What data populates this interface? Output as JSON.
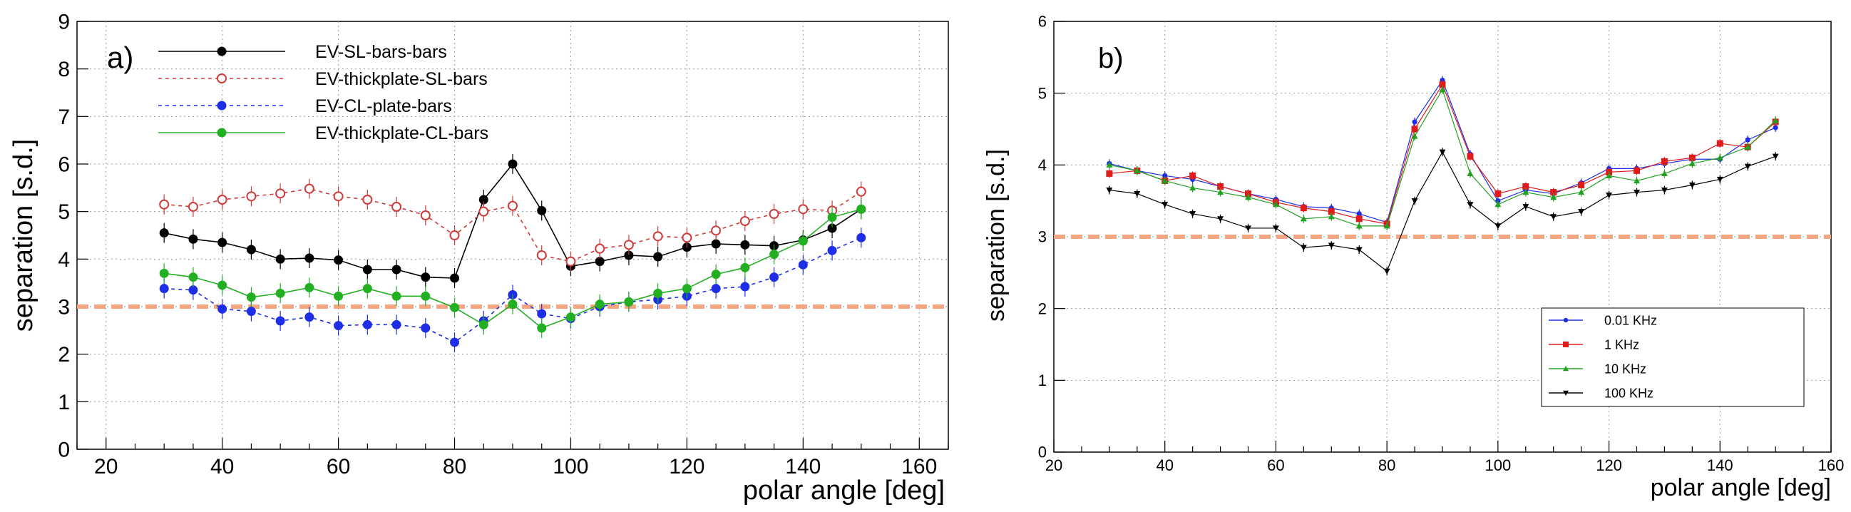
{
  "chart_data": [
    {
      "type": "line",
      "panel_label": "a)",
      "xlabel": "polar angle [deg]",
      "ylabel": "separation [s.d.]",
      "xlim": [
        15,
        165
      ],
      "ylim": [
        0,
        9
      ],
      "xticks": [
        20,
        40,
        60,
        80,
        100,
        120,
        140,
        160
      ],
      "yticks": [
        0,
        1,
        2,
        3,
        4,
        5,
        6,
        7,
        8,
        9
      ],
      "grid": true,
      "legend_position": "top-left",
      "threshold": {
        "y": 3,
        "color": "#f4a582"
      },
      "x": [
        30,
        35,
        40,
        45,
        50,
        55,
        60,
        65,
        70,
        75,
        80,
        85,
        90,
        95,
        100,
        105,
        110,
        115,
        120,
        125,
        130,
        135,
        140,
        145,
        150
      ],
      "series": [
        {
          "name": "EV-SL-bars-bars",
          "color": "#000000",
          "marker": "filled-circle",
          "dashed": false,
          "values": [
            4.55,
            4.42,
            4.35,
            4.2,
            4.0,
            4.02,
            3.98,
            3.78,
            3.78,
            3.62,
            3.6,
            5.25,
            6.0,
            5.02,
            3.85,
            3.95,
            4.08,
            4.05,
            4.25,
            4.32,
            4.3,
            4.28,
            4.4,
            4.65,
            5.05
          ]
        },
        {
          "name": "EV-thickplate-SL-bars",
          "color": "#d03a3a",
          "marker": "open-circle",
          "dashed": true,
          "values": [
            5.15,
            5.1,
            5.25,
            5.32,
            5.38,
            5.48,
            5.32,
            5.25,
            5.1,
            4.92,
            4.5,
            5.0,
            5.12,
            4.08,
            3.95,
            4.22,
            4.3,
            4.48,
            4.45,
            4.6,
            4.8,
            4.95,
            5.05,
            5.02,
            5.42
          ]
        },
        {
          "name": "EV-CL-plate-bars",
          "color": "#1e2ee6",
          "marker": "filled-circle",
          "dashed": true,
          "values": [
            3.38,
            3.35,
            2.95,
            2.9,
            2.7,
            2.78,
            2.6,
            2.62,
            2.62,
            2.55,
            2.25,
            2.7,
            3.25,
            2.85,
            2.75,
            3.0,
            3.1,
            3.15,
            3.22,
            3.38,
            3.42,
            3.62,
            3.88,
            4.18,
            4.45
          ]
        },
        {
          "name": "EV-thickplate-CL-bars",
          "color": "#22b022",
          "marker": "filled-circle",
          "dashed": false,
          "values": [
            3.7,
            3.62,
            3.45,
            3.2,
            3.28,
            3.4,
            3.22,
            3.38,
            3.22,
            3.22,
            2.98,
            2.62,
            3.05,
            2.55,
            2.78,
            3.05,
            3.1,
            3.28,
            3.38,
            3.68,
            3.82,
            4.1,
            4.38,
            4.88,
            5.05
          ]
        }
      ]
    },
    {
      "type": "line",
      "panel_label": "b)",
      "xlabel": "polar angle [deg]",
      "ylabel": "separation [s.d.]",
      "xlim": [
        20,
        160
      ],
      "ylim": [
        0,
        6
      ],
      "xticks": [
        20,
        40,
        60,
        80,
        100,
        120,
        140,
        160
      ],
      "yticks": [
        0,
        1,
        2,
        3,
        4,
        5,
        6
      ],
      "grid": true,
      "legend_position": "bottom-right",
      "threshold": {
        "y": 3,
        "color": "#f4a582"
      },
      "x": [
        30,
        35,
        40,
        45,
        50,
        55,
        60,
        65,
        70,
        75,
        80,
        85,
        90,
        95,
        100,
        105,
        110,
        115,
        120,
        125,
        130,
        135,
        140,
        145,
        150
      ],
      "series": [
        {
          "name": "0.01 KHz",
          "color": "#1e2ee6",
          "marker": "dot",
          "values": [
            4.02,
            3.92,
            3.85,
            3.8,
            3.7,
            3.6,
            3.52,
            3.42,
            3.4,
            3.32,
            3.2,
            4.6,
            5.18,
            4.15,
            3.5,
            3.65,
            3.6,
            3.75,
            3.95,
            3.95,
            4.02,
            4.08,
            4.08,
            4.35,
            4.52
          ]
        },
        {
          "name": "1 KHz",
          "color": "#e01b1b",
          "marker": "square",
          "values": [
            3.88,
            3.92,
            3.78,
            3.85,
            3.7,
            3.6,
            3.48,
            3.4,
            3.35,
            3.25,
            3.18,
            4.5,
            5.12,
            4.12,
            3.6,
            3.7,
            3.62,
            3.72,
            3.9,
            3.92,
            4.05,
            4.1,
            4.3,
            4.25,
            4.6
          ]
        },
        {
          "name": "10 KHz",
          "color": "#22a022",
          "marker": "triangle-up",
          "values": [
            4.0,
            3.92,
            3.78,
            3.68,
            3.62,
            3.55,
            3.45,
            3.25,
            3.28,
            3.15,
            3.15,
            4.4,
            5.05,
            3.88,
            3.45,
            3.62,
            3.55,
            3.62,
            3.85,
            3.78,
            3.88,
            4.02,
            4.1,
            4.25,
            4.62
          ]
        },
        {
          "name": "100 KHz",
          "color": "#000000",
          "marker": "triangle-down",
          "values": [
            3.65,
            3.6,
            3.45,
            3.32,
            3.25,
            3.12,
            3.12,
            2.85,
            2.88,
            2.82,
            2.52,
            3.5,
            4.18,
            3.45,
            3.15,
            3.42,
            3.28,
            3.35,
            3.58,
            3.62,
            3.65,
            3.72,
            3.8,
            3.98,
            4.12
          ]
        }
      ]
    }
  ]
}
